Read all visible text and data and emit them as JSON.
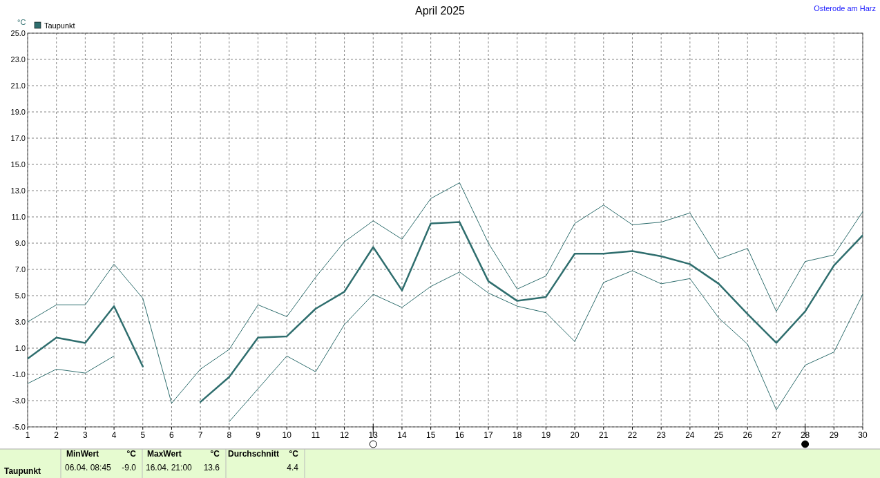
{
  "chart_data": {
    "type": "line",
    "title": "April 2025",
    "ylabel": "°C",
    "legend": "top left",
    "grid": true,
    "line_style": "solid",
    "x": [
      1,
      2,
      3,
      4,
      5,
      6,
      7,
      8,
      9,
      10,
      11,
      12,
      13,
      14,
      15,
      16,
      17,
      18,
      19,
      20,
      21,
      22,
      23,
      24,
      25,
      26,
      27,
      28,
      29,
      30
    ],
    "xlim": [
      1,
      30
    ],
    "xticks": [
      1,
      2,
      3,
      4,
      5,
      6,
      7,
      8,
      9,
      10,
      11,
      12,
      13,
      14,
      15,
      16,
      17,
      18,
      19,
      20,
      21,
      22,
      23,
      24,
      25,
      26,
      27,
      28,
      29,
      30
    ],
    "ylim": [
      -5,
      25
    ],
    "yticks": [
      {
        "value": -5,
        "label": "-5.0"
      },
      {
        "value": -3,
        "label": "-3.0"
      },
      {
        "value": -1,
        "label": "-1.0"
      },
      {
        "value": 1,
        "label": "1.0"
      },
      {
        "value": 3,
        "label": "3.0"
      },
      {
        "value": 5,
        "label": "5.0"
      },
      {
        "value": 7,
        "label": "7.0"
      },
      {
        "value": 9,
        "label": "9.0"
      },
      {
        "value": 11,
        "label": "11.0"
      },
      {
        "value": 13,
        "label": "13.0"
      },
      {
        "value": 15,
        "label": "15.0"
      },
      {
        "value": 17,
        "label": "17.0"
      },
      {
        "value": 19,
        "label": "19.0"
      },
      {
        "value": 21,
        "label": "21.0"
      },
      {
        "value": 23,
        "label": "23.0"
      },
      {
        "value": 25,
        "label": "25.0"
      }
    ],
    "series": [
      {
        "color": "#2f6e6e",
        "values": [
          3.0,
          4.3,
          4.3,
          7.4,
          4.8,
          -3.2,
          -0.6,
          0.9,
          4.3,
          3.4,
          6.4,
          9.1,
          10.7,
          9.3,
          12.4,
          13.6,
          9.0,
          5.5,
          6.5,
          10.5,
          11.9,
          10.4,
          10.6,
          11.3,
          7.8,
          8.6,
          3.8,
          7.6,
          8.1,
          11.4
        ]
      },
      {
        "name": "Taupunkt",
        "color": "#2f6e6e",
        "values": [
          0.2,
          1.8,
          1.4,
          4.2,
          -0.4,
          null,
          -3.1,
          -1.2,
          1.8,
          1.9,
          4.0,
          5.3,
          8.7,
          5.4,
          10.5,
          10.6,
          6.1,
          4.6,
          4.9,
          8.2,
          8.2,
          8.4,
          8.0,
          7.4,
          5.9,
          3.6,
          1.4,
          3.8,
          7.3,
          9.6
        ]
      },
      {
        "color": "#2f6e6e",
        "values": [
          -1.7,
          -0.6,
          -0.9,
          0.4,
          null,
          null,
          null,
          -4.6,
          -2.1,
          0.4,
          -0.8,
          2.8,
          5.1,
          4.1,
          5.7,
          6.8,
          5.2,
          4.2,
          3.7,
          1.5,
          6.0,
          6.9,
          5.9,
          6.3,
          3.3,
          1.3,
          -3.7,
          -0.3,
          0.7,
          5.1
        ]
      }
    ],
    "annotations": [
      "Osterode am Harz",
      "Taupunkt",
      "MinWert",
      "°C",
      "06.04.  08:45",
      "-9.0",
      "MaxWert",
      "°C",
      "16.04.  21:00",
      "13.6",
      "Durchschnitt",
      "°C",
      "4.4"
    ]
  }
}
